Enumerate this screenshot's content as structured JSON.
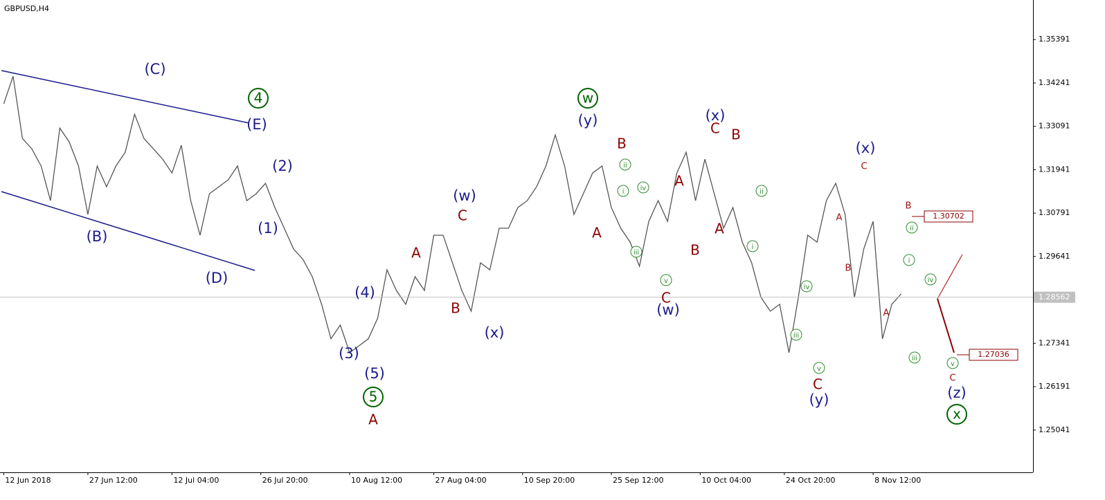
{
  "chart_data": {
    "type": "line",
    "title": "GBPUSD,H4",
    "color": "#555555",
    "values": [
      1.33687,
      1.3442,
      1.32771,
      1.32497,
      1.32038,
      1.31122,
      1.33046,
      1.3268,
      1.32038,
      1.30756,
      1.32038,
      1.31489,
      1.32038,
      1.32405,
      1.33412,
      1.32771,
      1.32497,
      1.32222,
      1.31855,
      1.32588,
      1.31122,
      1.30206,
      1.31306,
      1.31489,
      1.31672,
      1.32038,
      1.31122,
      1.31306,
      1.3158,
      1.30939,
      1.3039,
      1.2984,
      1.29565,
      1.29107,
      1.28374,
      1.27459,
      1.27825,
      1.27092,
      1.27275,
      1.27459,
      1.28008,
      1.2929,
      1.28741,
      1.28374,
      1.29107,
      1.28741,
      1.30206,
      1.30206,
      1.29474,
      1.28741,
      1.28191,
      1.29474,
      1.2929,
      1.3039,
      1.3039,
      1.30939,
      1.31122,
      1.31489,
      1.32038,
      1.32863,
      1.32038,
      1.30756,
      1.31306,
      1.31855,
      1.32038,
      1.30939,
      1.3039,
      1.30023,
      1.29382,
      1.30573,
      1.31122,
      1.30573,
      1.31855,
      1.32405,
      1.31122,
      1.32222,
      1.31306,
      1.3039,
      1.30939,
      1.30023,
      1.29474,
      1.28558,
      1.28191,
      1.28374,
      1.27092,
      1.28558,
      1.30206,
      1.30023,
      1.31122,
      1.3158,
      1.30756,
      1.28558,
      1.2984,
      1.30573,
      1.27459,
      1.28374,
      1.28649
    ],
    "xlim": [
      -0.4,
      110.1
    ],
    "xticks": [
      {
        "value": 0,
        "label": "12 Jun 2018"
      },
      {
        "value": 9,
        "label": "27 Jun 12:00"
      },
      {
        "value": 18,
        "label": "12 Jul 04:00"
      },
      {
        "value": 27.5,
        "label": "26 Jul 20:00"
      },
      {
        "value": 37,
        "label": "10 Aug 12:00"
      },
      {
        "value": 46,
        "label": "27 Aug 04:00"
      },
      {
        "value": 55.5,
        "label": "10 Sep 20:00"
      },
      {
        "value": 65,
        "label": "25 Sep 12:00"
      },
      {
        "value": 74.5,
        "label": "10 Oct 04:00"
      },
      {
        "value": 83.5,
        "label": "24 Oct 20:00"
      },
      {
        "value": 93,
        "label": "8 Nov 12:00"
      }
    ],
    "ylim": [
      1.2392,
      1.3644
    ],
    "yticks": [
      1.35391,
      1.34241,
      1.33091,
      1.31941,
      1.30791,
      1.29641,
      1.27341,
      1.26191,
      1.25041
    ],
    "current_price": 1.28562,
    "price_tags": [
      1.30702,
      1.27036
    ],
    "annotations": [
      {
        "text": "(C)",
        "kind": "navy"
      },
      {
        "text": "4",
        "kind": "green-circle"
      },
      {
        "text": "(E)",
        "kind": "navy"
      },
      {
        "text": "(B)",
        "kind": "navy"
      },
      {
        "text": "(D)",
        "kind": "navy"
      },
      {
        "text": "(2)",
        "kind": "navy"
      },
      {
        "text": "(1)",
        "kind": "navy"
      },
      {
        "text": "(4)",
        "kind": "navy"
      },
      {
        "text": "(3)",
        "kind": "navy"
      },
      {
        "text": "(5)",
        "kind": "navy"
      },
      {
        "text": "5",
        "kind": "green-circle"
      },
      {
        "text": "A",
        "kind": "red"
      },
      {
        "text": "A",
        "kind": "red"
      },
      {
        "text": "B",
        "kind": "red"
      },
      {
        "text": "C",
        "kind": "red"
      },
      {
        "text": "(w)",
        "kind": "navy"
      },
      {
        "text": "(x)",
        "kind": "navy"
      },
      {
        "text": "w",
        "kind": "green-circle"
      },
      {
        "text": "(y)",
        "kind": "navy"
      },
      {
        "text": "B",
        "kind": "red"
      },
      {
        "text": "A",
        "kind": "red"
      },
      {
        "text": "ii",
        "kind": "green-small"
      },
      {
        "text": "i",
        "kind": "green-small"
      },
      {
        "text": "iv",
        "kind": "green-small"
      },
      {
        "text": "iii",
        "kind": "green-small"
      },
      {
        "text": "v",
        "kind": "green-small"
      },
      {
        "text": "C",
        "kind": "red"
      },
      {
        "text": "(w)",
        "kind": "navy"
      },
      {
        "text": "A",
        "kind": "red"
      },
      {
        "text": "B",
        "kind": "red"
      },
      {
        "text": "(x)",
        "kind": "navy"
      },
      {
        "text": "C",
        "kind": "red"
      },
      {
        "text": "B",
        "kind": "red"
      },
      {
        "text": "A",
        "kind": "red"
      },
      {
        "text": "ii",
        "kind": "green-small"
      },
      {
        "text": "i",
        "kind": "green-small"
      },
      {
        "text": "iv",
        "kind": "green-small"
      },
      {
        "text": "iii",
        "kind": "green-small"
      },
      {
        "text": "v",
        "kind": "green-small"
      },
      {
        "text": "C",
        "kind": "red"
      },
      {
        "text": "(y)",
        "kind": "navy"
      },
      {
        "text": "(x)",
        "kind": "navy"
      },
      {
        "text": "C",
        "kind": "red-small"
      },
      {
        "text": "A",
        "kind": "red-small"
      },
      {
        "text": "B",
        "kind": "red-small"
      },
      {
        "text": "A",
        "kind": "red-small"
      },
      {
        "text": "B",
        "kind": "red-small"
      },
      {
        "text": "ii",
        "kind": "green-small"
      },
      {
        "text": "i",
        "kind": "green-small"
      },
      {
        "text": "iv",
        "kind": "green-small"
      },
      {
        "text": "iii",
        "kind": "green-small"
      },
      {
        "text": "v",
        "kind": "green-small"
      },
      {
        "text": "C",
        "kind": "red-small"
      },
      {
        "text": "(z)",
        "kind": "navy"
      },
      {
        "text": "x",
        "kind": "green-circle"
      }
    ]
  }
}
